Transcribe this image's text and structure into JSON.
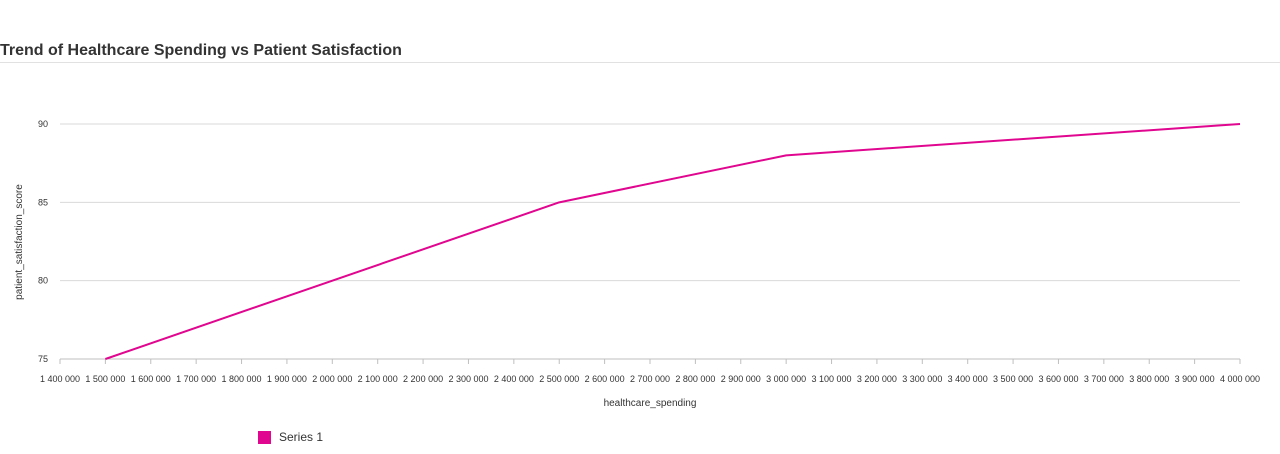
{
  "chart_data": {
    "type": "line",
    "title": "Trend of Healthcare Spending vs Patient Satisfaction",
    "xlabel": "healthcare_spending",
    "ylabel": "patient_satisfaction_score",
    "xlim": [
      1400000,
      4000000
    ],
    "ylim": [
      75,
      90
    ],
    "x_ticks": [
      1400000,
      1500000,
      1600000,
      1700000,
      1800000,
      1900000,
      2000000,
      2100000,
      2200000,
      2300000,
      2400000,
      2500000,
      2600000,
      2700000,
      2800000,
      2900000,
      3000000,
      3100000,
      3200000,
      3300000,
      3400000,
      3500000,
      3600000,
      3700000,
      3800000,
      3900000,
      4000000
    ],
    "x_tick_labels": [
      "1 400 000",
      "1 500 000",
      "1 600 000",
      "1 700 000",
      "1 800 000",
      "1 900 000",
      "2 000 000",
      "2 100 000",
      "2 200 000",
      "2 300 000",
      "2 400 000",
      "2 500 000",
      "2 600 000",
      "2 700 000",
      "2 800 000",
      "2 900 000",
      "3 000 000",
      "3 100 000",
      "3 200 000",
      "3 300 000",
      "3 400 000",
      "3 500 000",
      "3 600 000",
      "3 700 000",
      "3 800 000",
      "3 900 000",
      "4 000 000"
    ],
    "y_ticks": [
      75,
      80,
      85,
      90
    ],
    "y_tick_labels": [
      "75",
      "80",
      "85",
      "90"
    ],
    "grid": "horizontal",
    "legend_position": "bottom-left",
    "series": [
      {
        "name": "Series 1",
        "color": "#e0068f",
        "points": [
          {
            "x": 1500000,
            "y": 75
          },
          {
            "x": 2000000,
            "y": 80
          },
          {
            "x": 2500000,
            "y": 85
          },
          {
            "x": 3000000,
            "y": 88
          },
          {
            "x": 4000000,
            "y": 90
          }
        ]
      }
    ]
  }
}
